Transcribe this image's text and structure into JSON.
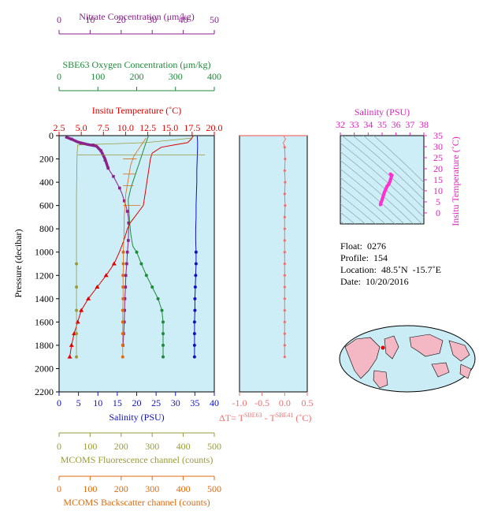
{
  "chart_data": [
    {
      "id": "main",
      "type": "line",
      "ylabel": "Pressure (decibar)",
      "yticks": [
        0,
        200,
        400,
        600,
        800,
        1000,
        1200,
        1400,
        1600,
        1800,
        2000,
        2200
      ],
      "ylim": [
        0,
        2200
      ],
      "grid": false,
      "axes": {
        "nitrate": {
          "label": "Nitrate Concentration (μm/kg)",
          "range": [
            0,
            50
          ],
          "ticks": [
            0,
            10,
            20,
            30,
            40,
            50
          ],
          "color": "#8b238b",
          "position": "top"
        },
        "oxygen": {
          "label": "SBE63 Oxygen Concentration (μm/kg)",
          "range": [
            0,
            400
          ],
          "ticks": [
            0,
            100,
            200,
            300,
            400
          ],
          "color": "#1f8a3a",
          "position": "top"
        },
        "temperature": {
          "label": "Insitu Temperature (˚C)",
          "range": [
            2.5,
            20.0
          ],
          "ticks": [
            "2.5",
            "5.0",
            "7.5",
            "10.0",
            "12.5",
            "15.0",
            "17.5",
            "20.0"
          ],
          "color": "#e00000",
          "position": "top"
        },
        "salinity": {
          "label": "Salinity (PSU)",
          "range": [
            0,
            40
          ],
          "ticks": [
            0,
            5,
            10,
            15,
            20,
            25,
            30,
            35,
            40
          ],
          "color": "#1010c0",
          "position": "bottom"
        },
        "fluorescence": {
          "label": "MCOMS Fluorescence channel (counts)",
          "range": [
            0,
            500
          ],
          "ticks": [
            0,
            100,
            200,
            300,
            400,
            500
          ],
          "color": "#9a9a3a",
          "position": "bottom"
        },
        "backscatter": {
          "label": "MCOMS Backscatter channel (counts)",
          "range": [
            0,
            500
          ],
          "ticks": [
            0,
            100,
            200,
            300,
            400,
            500
          ],
          "color": "#e06a10",
          "position": "bottom"
        }
      },
      "series": [
        {
          "axis": "nitrate",
          "color": "#8b238b",
          "points": [
            [
              2,
              10
            ],
            [
              4,
              30
            ],
            [
              5,
              50
            ],
            [
              7,
              65
            ],
            [
              9,
              75
            ],
            [
              11,
              80
            ],
            [
              12.5,
              95
            ],
            [
              13.5,
              130
            ],
            [
              14.2,
              170
            ],
            [
              14.8,
              210
            ],
            [
              15.3,
              250
            ],
            [
              15.8,
              280
            ],
            [
              16.5,
              310
            ],
            [
              17.5,
              350
            ],
            [
              18.5,
              400
            ],
            [
              19.5,
              450
            ],
            [
              20.3,
              500
            ],
            [
              21,
              560
            ],
            [
              21.5,
              600
            ],
            [
              22,
              650
            ],
            [
              22.3,
              700
            ],
            [
              22.4,
              750
            ],
            [
              22.4,
              800
            ],
            [
              22.3,
              900
            ],
            [
              22,
              1000
            ],
            [
              21.8,
              1100
            ],
            [
              21.5,
              1200
            ],
            [
              21.4,
              1300
            ],
            [
              21.2,
              1400
            ],
            [
              21.1,
              1500
            ],
            [
              21,
              1600
            ],
            [
              20.8,
              1700
            ],
            [
              20.6,
              1800
            ]
          ]
        },
        {
          "axis": "oxygen",
          "color": "#1f8a3a",
          "points": [
            [
              230,
              5
            ],
            [
              225,
              50
            ],
            [
              215,
              150
            ],
            [
              205,
              250
            ],
            [
              195,
              350
            ],
            [
              185,
              450
            ],
            [
              178,
              550
            ],
            [
              180,
              650
            ],
            [
              182,
              750
            ],
            [
              185,
              850
            ],
            [
              190,
              950
            ],
            [
              200,
              1000
            ],
            [
              212,
              1100
            ],
            [
              225,
              1200
            ],
            [
              240,
              1300
            ],
            [
              255,
              1400
            ],
            [
              265,
              1500
            ],
            [
              268,
              1600
            ],
            [
              268,
              1700
            ],
            [
              268,
              1800
            ],
            [
              268,
              1900
            ]
          ]
        },
        {
          "axis": "temperature",
          "color": "#e00000",
          "points": [
            [
              17.6,
              5
            ],
            [
              17.4,
              30
            ],
            [
              17.0,
              60
            ],
            [
              15.5,
              80
            ],
            [
              14.0,
              100
            ],
            [
              13.0,
              150
            ],
            [
              12.8,
              200
            ],
            [
              12.6,
              300
            ],
            [
              12.4,
              400
            ],
            [
              12.2,
              500
            ],
            [
              12.0,
              600
            ],
            [
              11.5,
              650
            ],
            [
              11.0,
              700
            ],
            [
              10.5,
              750
            ],
            [
              10.2,
              800
            ],
            [
              9.8,
              900
            ],
            [
              9.3,
              1000
            ],
            [
              8.7,
              1100
            ],
            [
              7.8,
              1200
            ],
            [
              6.8,
              1300
            ],
            [
              5.8,
              1400
            ],
            [
              5.0,
              1500
            ],
            [
              4.6,
              1600
            ],
            [
              4.2,
              1700
            ],
            [
              3.9,
              1800
            ],
            [
              3.7,
              1900
            ]
          ]
        },
        {
          "axis": "salinity",
          "color": "#1010c0",
          "points": [
            [
              35.6,
              5
            ],
            [
              35.7,
              50
            ],
            [
              35.7,
              100
            ],
            [
              35.6,
              200
            ],
            [
              35.5,
              300
            ],
            [
              35.5,
              400
            ],
            [
              35.4,
              500
            ],
            [
              35.3,
              600
            ],
            [
              35.3,
              700
            ],
            [
              35.2,
              800
            ],
            [
              35.2,
              900
            ],
            [
              35.3,
              1000
            ],
            [
              35.3,
              1100
            ],
            [
              35.2,
              1200
            ],
            [
              35.1,
              1300
            ],
            [
              35.0,
              1400
            ],
            [
              35.0,
              1500
            ],
            [
              34.9,
              1600
            ],
            [
              34.9,
              1700
            ],
            [
              34.9,
              1800
            ],
            [
              34.9,
              1900
            ]
          ]
        },
        {
          "axis": "fluorescence",
          "color": "#9a9a3a",
          "points": [
            [
              430,
              20
            ],
            [
              280,
              60
            ],
            [
              60,
              80
            ],
            [
              58,
              150
            ],
            [
              57,
              300
            ],
            [
              56,
              500
            ],
            [
              56,
              700
            ],
            [
              56,
              900
            ],
            [
              56,
              1100
            ],
            [
              56,
              1300
            ],
            [
              56,
              1500
            ],
            [
              56,
              1700
            ],
            [
              56,
              1900
            ]
          ]
        },
        {
          "axis": "backscatter",
          "color": "#e06a10",
          "points": [
            [
              280,
              20
            ],
            [
              270,
              60
            ],
            [
              255,
              120
            ],
            [
              240,
              180
            ],
            [
              230,
              260
            ],
            [
              225,
              340
            ],
            [
              220,
              420
            ],
            [
              215,
              500
            ],
            [
              212,
              600
            ],
            [
              210,
              700
            ],
            [
              210,
              800
            ],
            [
              208,
              900
            ],
            [
              207,
              1000
            ],
            [
              207,
              1100
            ],
            [
              206,
              1200
            ],
            [
              206,
              1300
            ],
            [
              206,
              1400
            ],
            [
              205,
              1500
            ],
            [
              205,
              1600
            ],
            [
              205,
              1700
            ],
            [
              205,
              1800
            ],
            [
              205,
              1900
            ]
          ]
        }
      ],
      "spikes_backscatter": [
        [
          250,
          200
        ],
        [
          245,
          330
        ],
        [
          240,
          430
        ],
        [
          262,
          600
        ]
      ],
      "spikes_fluorescence": [
        [
          470,
          165
        ]
      ]
    },
    {
      "id": "delta",
      "type": "line",
      "xlabel": "ΔT= T",
      "xlabel_sup1": "SBE63",
      "xlabel_mid": " - T",
      "xlabel_sup2": "SBE41",
      "xlabel_unit": " (˚C)",
      "xlim": [
        -1.0,
        0.5
      ],
      "xticks": [
        "-1.0",
        "-0.5",
        "0.0",
        "0.5"
      ],
      "color": "#f07070",
      "points": [
        [
          -0.02,
          5
        ],
        [
          0.02,
          30
        ],
        [
          -0.03,
          60
        ],
        [
          0.0,
          100
        ],
        [
          0.01,
          200
        ],
        [
          0.0,
          300
        ],
        [
          0.01,
          400
        ],
        [
          0.0,
          500
        ],
        [
          0.01,
          600
        ],
        [
          0.0,
          700
        ],
        [
          0.0,
          800
        ],
        [
          0.0,
          900
        ],
        [
          0.0,
          1000
        ],
        [
          0.0,
          1100
        ],
        [
          0.0,
          1200
        ],
        [
          0.0,
          1300
        ],
        [
          0.0,
          1400
        ],
        [
          0.0,
          1500
        ],
        [
          0.0,
          1600
        ],
        [
          0.0,
          1700
        ],
        [
          0.0,
          1800
        ],
        [
          0.0,
          1900
        ]
      ]
    },
    {
      "id": "ts",
      "type": "scatter",
      "xlabel": "Salinity (PSU)",
      "ylabel": "Insitu Temperature (˚C)",
      "xlim": [
        32,
        38
      ],
      "ylim": [
        -5,
        35
      ],
      "xticks": [
        32,
        33,
        34,
        35,
        36,
        37,
        38
      ],
      "yticks": [
        0,
        5,
        10,
        15,
        20,
        25,
        30,
        35
      ],
      "color": "#e020c0",
      "points": [
        [
          35.6,
          17.6
        ],
        [
          35.7,
          17.0
        ],
        [
          35.65,
          16.0
        ],
        [
          35.6,
          15.0
        ],
        [
          35.55,
          14.0
        ],
        [
          35.5,
          13.2
        ],
        [
          35.45,
          12.8
        ],
        [
          35.4,
          12.4
        ],
        [
          35.35,
          12.0
        ],
        [
          35.3,
          11.2
        ],
        [
          35.25,
          10.5
        ],
        [
          35.2,
          9.8
        ],
        [
          35.15,
          9.0
        ],
        [
          35.1,
          8.0
        ],
        [
          35.05,
          7.0
        ],
        [
          35.0,
          6.0
        ],
        [
          34.95,
          5.0
        ],
        [
          34.9,
          4.4
        ],
        [
          34.9,
          3.9
        ],
        [
          34.88,
          3.7
        ]
      ]
    }
  ],
  "info": {
    "float": "Float:  0276",
    "profile": "Profile:  154",
    "location": "Location:  48.5˚N  -15.7˚E",
    "date": "Date:  10/20/2016"
  },
  "map": {
    "ocean_color": "#c9ecf5",
    "land_color": "#f4b8c4",
    "marker_color": "#e00000"
  }
}
